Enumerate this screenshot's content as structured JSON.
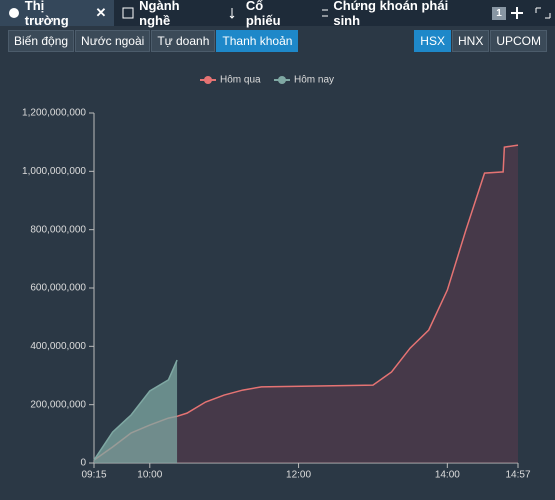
{
  "tabs": [
    {
      "label": "Thị trường"
    },
    {
      "label": "Ngành nghề"
    },
    {
      "label": "Cổ phiếu"
    },
    {
      "label": "Chứng khoán phái sinh"
    }
  ],
  "tab_badge": "1",
  "view_buttons": [
    "Biến động",
    "Nước ngoài",
    "Tự doanh",
    "Thanh khoản"
  ],
  "exchange_buttons": [
    "HSX",
    "HNX",
    "UPCOM"
  ],
  "chart_data": {
    "type": "area",
    "x": [
      "09:15",
      "09:30",
      "09:45",
      "10:00",
      "10:15",
      "10:22",
      "10:30",
      "10:45",
      "11:00",
      "11:15",
      "11:30",
      "13:00",
      "13:15",
      "13:30",
      "13:45",
      "14:00",
      "14:15",
      "14:30",
      "14:45",
      "14:46",
      "14:57"
    ],
    "series": [
      {
        "name": "Hôm qua",
        "color": "#e57373",
        "values": [
          10000000,
          55000000,
          103000000,
          130000000,
          154000000,
          160000000,
          171000000,
          209000000,
          233000000,
          250000000,
          261000000,
          267000000,
          312000000,
          394000000,
          456000000,
          593000000,
          799000000,
          994000000,
          998000000,
          1083000000,
          1090000000
        ]
      },
      {
        "name": "Hôm nay",
        "color": "#7fa8a3",
        "values": [
          10000000,
          106000000,
          165000000,
          247000000,
          285000000,
          353000000,
          null,
          null,
          null,
          null,
          null,
          null,
          null,
          null,
          null,
          null,
          null,
          null,
          null,
          null,
          null
        ]
      }
    ],
    "xlim": [
      "09:15",
      "14:57"
    ],
    "xticks": [
      "09:15",
      "10:00",
      "12:00",
      "14:00",
      "14:57"
    ],
    "ylim": [
      0,
      1200000000
    ],
    "yticks": [
      0,
      {
        "value": 200000000,
        "label": "200,000,000"
      },
      {
        "value": 400000000,
        "label": "400,000,000"
      },
      {
        "value": 600000000,
        "label": "600,000,000"
      },
      {
        "value": 800000000,
        "label": "800,000,000"
      },
      {
        "value": 1000000000,
        "label": "1,000,000,000"
      },
      {
        "value": 1200000000,
        "label": "1,200,000,000"
      }
    ],
    "legend": "top"
  }
}
